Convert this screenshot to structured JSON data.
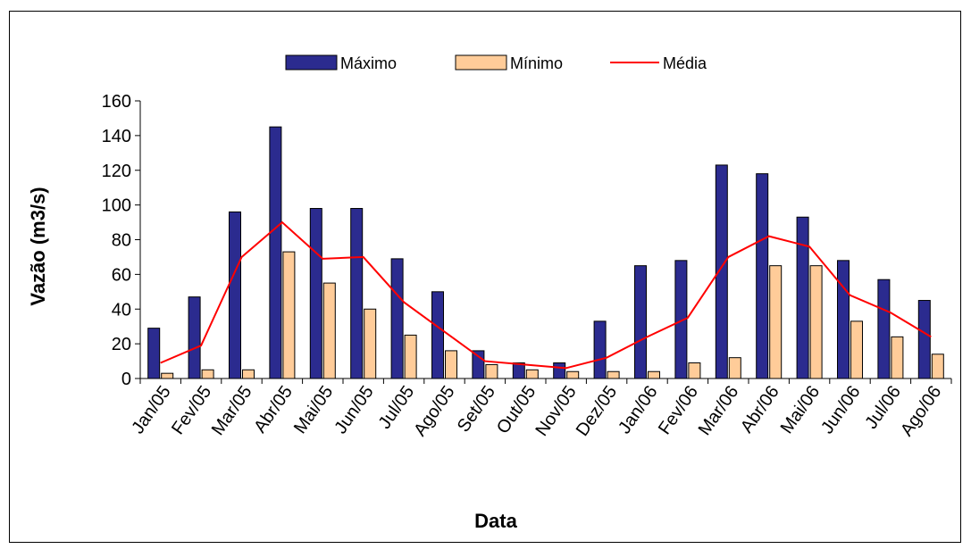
{
  "chart_data": {
    "type": "bar",
    "xlabel": "Data",
    "ylabel": "Vazão (m3/s)",
    "ylim": [
      0,
      160
    ],
    "yticks": [
      0,
      20,
      40,
      60,
      80,
      100,
      120,
      140,
      160
    ],
    "categories": [
      "Jan/05",
      "Fev/05",
      "Mar/05",
      "Abr/05",
      "Mai/05",
      "Jun/05",
      "Jul/05",
      "Ago/05",
      "Set/05",
      "Out/05",
      "Nov/05",
      "Dez/05",
      "Jan/06",
      "Fev/06",
      "Mar/06",
      "Abr/06",
      "Mai/06",
      "Jun/06",
      "Jul/06",
      "Ago/06"
    ],
    "series": [
      {
        "name": "Máximo",
        "kind": "bar",
        "color": "#2B2B8F",
        "values": [
          29,
          47,
          96,
          145,
          98,
          98,
          69,
          50,
          16,
          9,
          9,
          33,
          65,
          68,
          123,
          118,
          93,
          68,
          57,
          45
        ]
      },
      {
        "name": "Mínimo",
        "kind": "bar",
        "color": "#FFCC99",
        "values": [
          3,
          5,
          5,
          73,
          55,
          40,
          25,
          16,
          8,
          5,
          4,
          4,
          4,
          9,
          12,
          65,
          65,
          33,
          24,
          14
        ]
      },
      {
        "name": "Média",
        "kind": "line",
        "color": "#FF0000",
        "values": [
          9,
          19,
          70,
          90,
          69,
          70,
          44,
          27,
          10,
          8,
          6,
          12,
          24,
          35,
          70,
          82,
          76,
          48,
          38,
          24
        ]
      }
    ],
    "grid": false,
    "legend_position": "top"
  }
}
